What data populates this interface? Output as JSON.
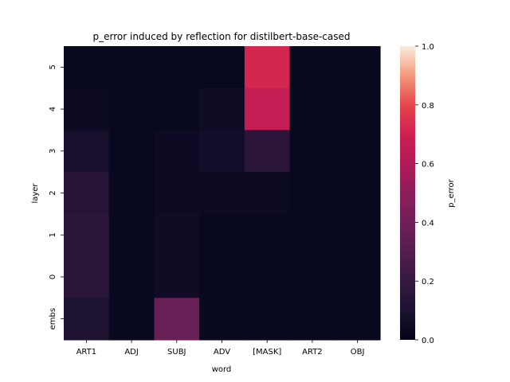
{
  "chart_data": {
    "type": "heatmap",
    "title": "p_error induced by reflection for distilbert-base-cased",
    "xlabel": "word",
    "ylabel": "layer",
    "colorbar_label": "p_error",
    "x_categories": [
      "ART1",
      "ADJ",
      "SUBJ",
      "ADV",
      "[MASK]",
      "ART2",
      "OBJ"
    ],
    "y_categories_top_to_bottom": [
      "5",
      "4",
      "3",
      "2",
      "1",
      "0",
      "embs"
    ],
    "colorscale": "rocket",
    "vmin": 0.0,
    "vmax": 1.0,
    "colorbar_ticks": [
      "0.0",
      "0.2",
      "0.4",
      "0.6",
      "0.8",
      "1.0"
    ],
    "values": [
      [
        0.02,
        0.02,
        0.02,
        0.02,
        0.72,
        0.02,
        0.02
      ],
      [
        0.04,
        0.02,
        0.02,
        0.05,
        0.66,
        0.02,
        0.02
      ],
      [
        0.08,
        0.02,
        0.04,
        0.06,
        0.16,
        0.02,
        0.02
      ],
      [
        0.14,
        0.02,
        0.04,
        0.04,
        0.04,
        0.02,
        0.02
      ],
      [
        0.15,
        0.02,
        0.05,
        0.02,
        0.02,
        0.02,
        0.02
      ],
      [
        0.15,
        0.02,
        0.05,
        0.02,
        0.02,
        0.02,
        0.02
      ],
      [
        0.11,
        0.02,
        0.37,
        0.02,
        0.02,
        0.02,
        0.02
      ]
    ]
  }
}
